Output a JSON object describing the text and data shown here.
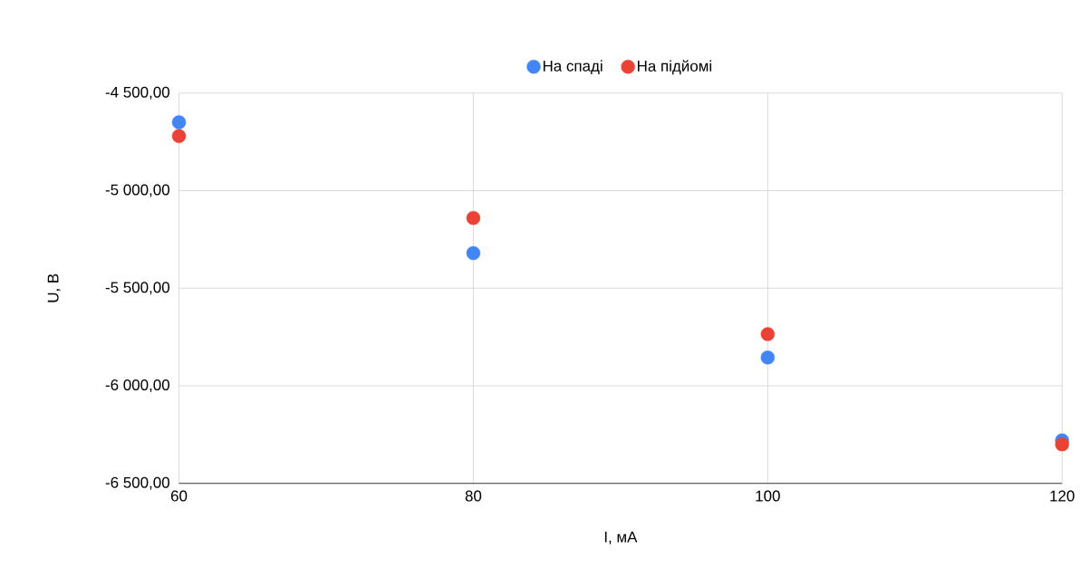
{
  "chart_data": {
    "type": "scatter",
    "xlabel": "I, мА",
    "ylabel": "U, В",
    "x": [
      60,
      80,
      100,
      120
    ],
    "series": [
      {
        "name": "На спаді",
        "color": "#4285f4",
        "values": [
          -4650,
          -5320,
          -5855,
          -6280
        ]
      },
      {
        "name": "На підйомі",
        "color": "#ea4335",
        "values": [
          -4720,
          -5140,
          -5735,
          -6300
        ]
      }
    ],
    "xlim": [
      60,
      120
    ],
    "xticks": [
      60,
      80,
      100,
      120
    ],
    "ylim": [
      -6500,
      -4500
    ],
    "yticks": [
      {
        "value": -6500,
        "label": "-6 500,00"
      },
      {
        "value": -6000,
        "label": "-6 000,00"
      },
      {
        "value": -5500,
        "label": "-5 500,00"
      },
      {
        "value": -5000,
        "label": "-5 000,00"
      },
      {
        "value": -4500,
        "label": "-4 500,00"
      }
    ],
    "grid": true,
    "legend": "top",
    "marker": "circle"
  }
}
